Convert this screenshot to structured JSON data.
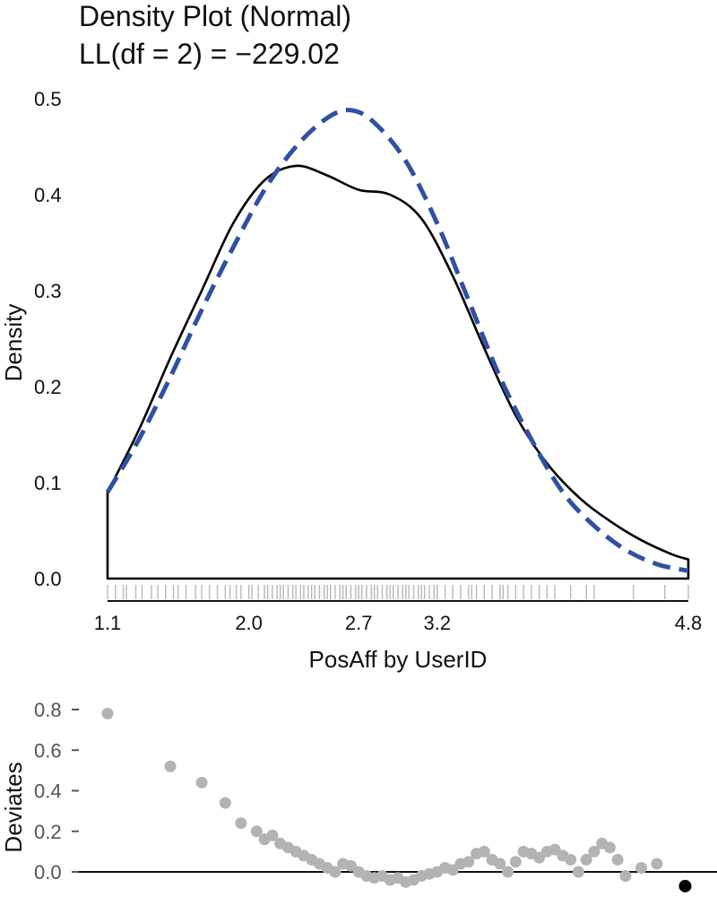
{
  "header": {
    "title_line1": "Density Plot (Normal)",
    "title_line2": "LL(df = 2) = −229.02"
  },
  "colors": {
    "observed": "#000000",
    "normal_fit": "#2f50a3",
    "rug": "#b8b8b8",
    "deviates_points": "#b3b3b3",
    "highlight_point": "#000000"
  },
  "chart_data": [
    {
      "type": "line",
      "title": "Density Plot (Normal)",
      "subtitle": "LL(df = 2) = −229.02",
      "xlabel": "PosAff by UserID",
      "ylabel": "Density",
      "xlim": [
        1.1,
        4.8
      ],
      "ylim": [
        0,
        0.5
      ],
      "xticks": [
        1.1,
        2.0,
        2.7,
        3.2,
        4.8
      ],
      "xtick_labels": [
        "1.1",
        "2.0",
        "2.7",
        "3.2",
        "4.8"
      ],
      "yticks": [
        0.0,
        0.1,
        0.2,
        0.3,
        0.4,
        0.5
      ],
      "ytick_labels": [
        "0.0",
        "0.1",
        "0.2",
        "0.3",
        "0.4",
        "0.5"
      ],
      "series": [
        {
          "style": "solid",
          "x": [
            1.1,
            1.3,
            1.5,
            1.7,
            1.9,
            2.1,
            2.3,
            2.5,
            2.7,
            2.9,
            3.1,
            3.3,
            3.5,
            3.7,
            3.9,
            4.1,
            4.3,
            4.5,
            4.7,
            4.8
          ],
          "y": [
            0.09,
            0.155,
            0.23,
            0.3,
            0.37,
            0.415,
            0.43,
            0.42,
            0.405,
            0.4,
            0.375,
            0.315,
            0.24,
            0.17,
            0.12,
            0.085,
            0.06,
            0.04,
            0.025,
            0.02
          ]
        },
        {
          "style": "dashed",
          "x": [
            1.1,
            1.3,
            1.5,
            1.7,
            1.9,
            2.1,
            2.3,
            2.5,
            2.65,
            2.8,
            3.0,
            3.2,
            3.4,
            3.6,
            3.8,
            4.0,
            4.2,
            4.4,
            4.6,
            4.8
          ],
          "y": [
            0.09,
            0.145,
            0.21,
            0.28,
            0.345,
            0.405,
            0.45,
            0.48,
            0.488,
            0.475,
            0.435,
            0.37,
            0.29,
            0.21,
            0.145,
            0.09,
            0.055,
            0.03,
            0.015,
            0.008
          ]
        }
      ],
      "rug": [
        1.1,
        1.15,
        1.2,
        1.22,
        1.28,
        1.32,
        1.38,
        1.42,
        1.47,
        1.52,
        1.55,
        1.6,
        1.66,
        1.7,
        1.75,
        1.8,
        1.85,
        1.88,
        1.92,
        1.95,
        2.0,
        2.02,
        2.06,
        2.1,
        2.12,
        2.15,
        2.18,
        2.2,
        2.22,
        2.25,
        2.28,
        2.3,
        2.33,
        2.35,
        2.38,
        2.4,
        2.42,
        2.45,
        2.48,
        2.5,
        2.52,
        2.55,
        2.58,
        2.6,
        2.62,
        2.65,
        2.68,
        2.7,
        2.72,
        2.75,
        2.78,
        2.8,
        2.82,
        2.85,
        2.88,
        2.9,
        2.92,
        2.95,
        2.98,
        3.0,
        3.02,
        3.05,
        3.08,
        3.1,
        3.12,
        3.15,
        3.18,
        3.2,
        3.25,
        3.3,
        3.35,
        3.4,
        3.42,
        3.45,
        3.5,
        3.55,
        3.6,
        3.62,
        3.65,
        3.7,
        3.75,
        3.8,
        3.85,
        3.9,
        3.95,
        4.05,
        4.15,
        4.2,
        4.45,
        4.65,
        4.8
      ]
    },
    {
      "type": "scatter",
      "xlabel": "",
      "ylabel": "Deviates",
      "ylim": [
        0,
        0.8
      ],
      "yticks": [
        0.0,
        0.2,
        0.4,
        0.6,
        0.8
      ],
      "ytick_labels": [
        "0.0",
        "0.2",
        "0.4",
        "0.6",
        "0.8"
      ],
      "reference_line": 0,
      "x": [
        1.1,
        1.5,
        1.7,
        1.85,
        1.95,
        2.05,
        2.1,
        2.15,
        2.2,
        2.25,
        2.3,
        2.35,
        2.4,
        2.45,
        2.5,
        2.55,
        2.6,
        2.65,
        2.7,
        2.75,
        2.8,
        2.85,
        2.9,
        2.95,
        3.0,
        3.05,
        3.1,
        3.15,
        3.2,
        3.25,
        3.3,
        3.35,
        3.4,
        3.45,
        3.5,
        3.55,
        3.6,
        3.65,
        3.7,
        3.75,
        3.8,
        3.85,
        3.9,
        3.95,
        4.0,
        4.05,
        4.1,
        4.15,
        4.2,
        4.25,
        4.3,
        4.35,
        4.4,
        4.5,
        4.6
      ],
      "y": [
        0.78,
        0.52,
        0.44,
        0.34,
        0.24,
        0.2,
        0.16,
        0.18,
        0.14,
        0.12,
        0.1,
        0.08,
        0.06,
        0.04,
        0.02,
        0.0,
        0.04,
        0.03,
        0.0,
        -0.02,
        -0.03,
        -0.02,
        -0.04,
        -0.03,
        -0.05,
        -0.04,
        -0.02,
        -0.01,
        0.0,
        0.02,
        0.01,
        0.04,
        0.05,
        0.09,
        0.1,
        0.06,
        0.04,
        0.0,
        0.05,
        0.1,
        0.09,
        0.07,
        0.1,
        0.11,
        0.08,
        0.06,
        0.0,
        0.06,
        0.1,
        0.14,
        0.12,
        0.06,
        -0.02,
        0.02,
        0.04
      ],
      "highlight": {
        "x": 4.78,
        "y": -0.07
      }
    }
  ]
}
